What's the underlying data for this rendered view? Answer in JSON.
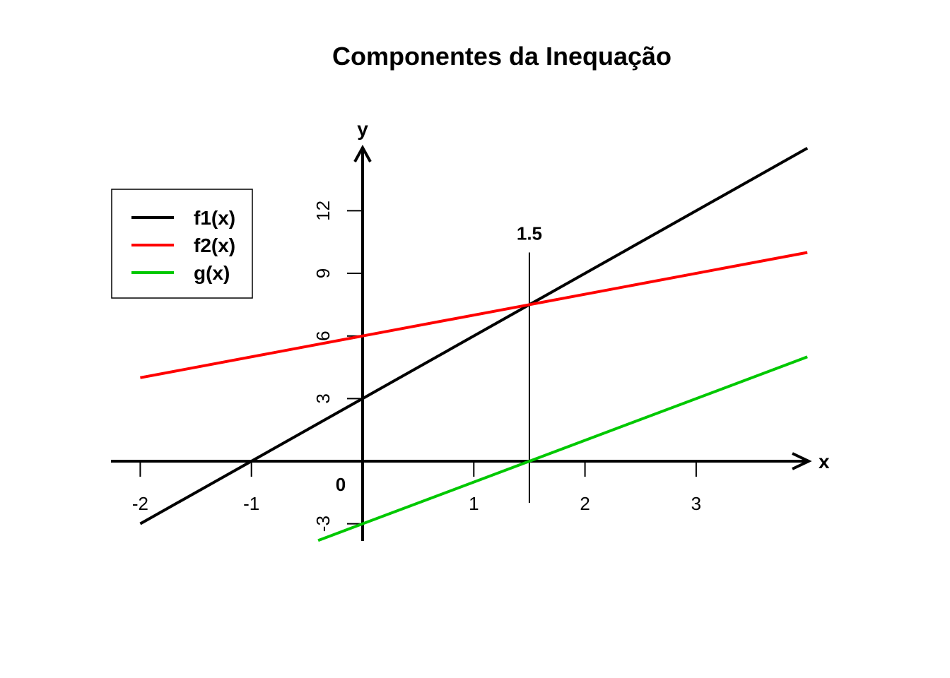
{
  "chart_data": {
    "type": "line",
    "title": "Componentes da Inequação",
    "xlabel": "x",
    "ylabel": "y",
    "xlim": [
      -2.25,
      4.0
    ],
    "ylim": [
      -3.75,
      15.0
    ],
    "grid": false,
    "x_ticks": [
      -2,
      -1,
      1,
      2,
      3
    ],
    "y_ticks": [
      -3,
      3,
      6,
      9,
      12
    ],
    "origin_label": "0",
    "series": [
      {
        "name": "f1(x)",
        "color": "#000000",
        "x": [
          -2,
          4
        ],
        "y": [
          -3,
          15
        ]
      },
      {
        "name": "f2(x)",
        "color": "#ff0000",
        "x": [
          -2,
          4
        ],
        "y": [
          4,
          10
        ]
      },
      {
        "name": "g(x)",
        "color": "#00c800",
        "x": [
          -0.4,
          4
        ],
        "y": [
          -3.8,
          5
        ]
      }
    ],
    "vertical_marker": {
      "x": 1.5,
      "y_range": [
        -2,
        10
      ],
      "label": "1.5"
    },
    "legend": {
      "position": "top-left"
    }
  }
}
